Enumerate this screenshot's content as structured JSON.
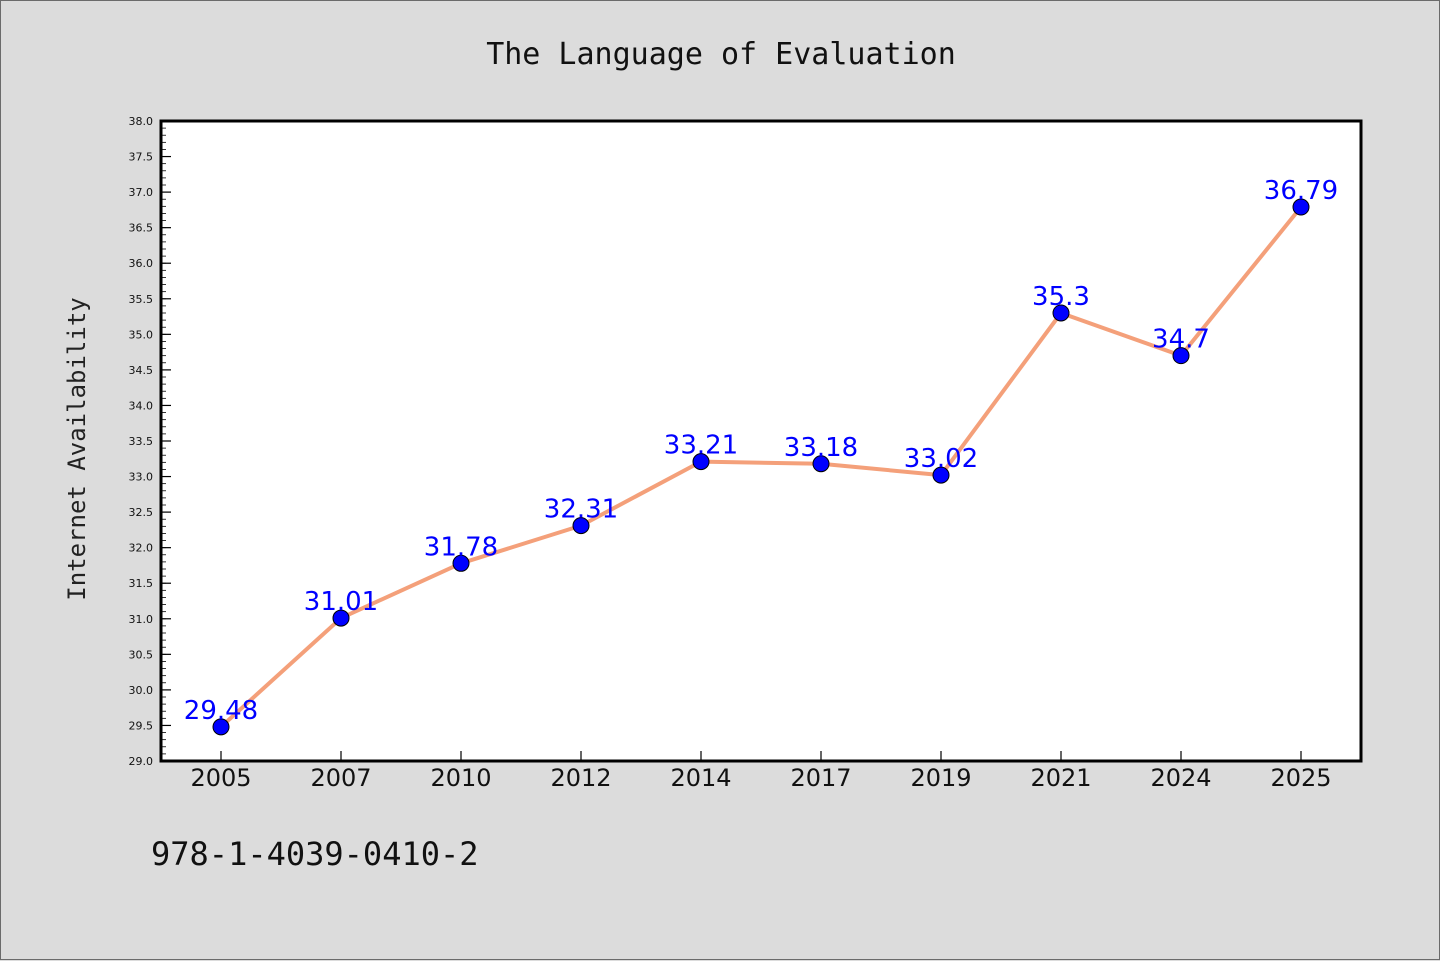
{
  "chart_data": {
    "type": "line",
    "title": "The Language of Evaluation",
    "xlabel": "",
    "ylabel": "Internet Availability",
    "categories": [
      "2005",
      "2007",
      "2010",
      "2012",
      "2014",
      "2017",
      "2019",
      "2021",
      "2024",
      "2025"
    ],
    "series": [
      {
        "values": [
          29.48,
          31.01,
          31.78,
          32.31,
          33.21,
          33.18,
          33.02,
          35.3,
          34.7,
          36.79
        ],
        "data_labels": [
          "29.48",
          "31.01",
          "31.78",
          "32.31",
          "33.21",
          "33.18",
          "33.02",
          "35.3",
          "34.7",
          "36.79"
        ],
        "line_color": "#f4a07a",
        "marker_color": "#0000ff"
      }
    ],
    "ylim": [
      29.0,
      38.0
    ],
    "yticks": [
      "29.0",
      "29.5",
      "30.0",
      "30.5",
      "31.0",
      "31.5",
      "32.0",
      "32.5",
      "33.0",
      "33.5",
      "34.0",
      "34.5",
      "35.0",
      "35.5",
      "36.0",
      "36.5",
      "37.0",
      "37.5",
      "38.0"
    ],
    "grid": false,
    "legend": "none"
  },
  "footer": {
    "isbn": "978-1-4039-0410-2"
  },
  "colors": {
    "background": "#dcdcdc",
    "plot_background": "#ffffff",
    "data_label": "#0000ff"
  }
}
